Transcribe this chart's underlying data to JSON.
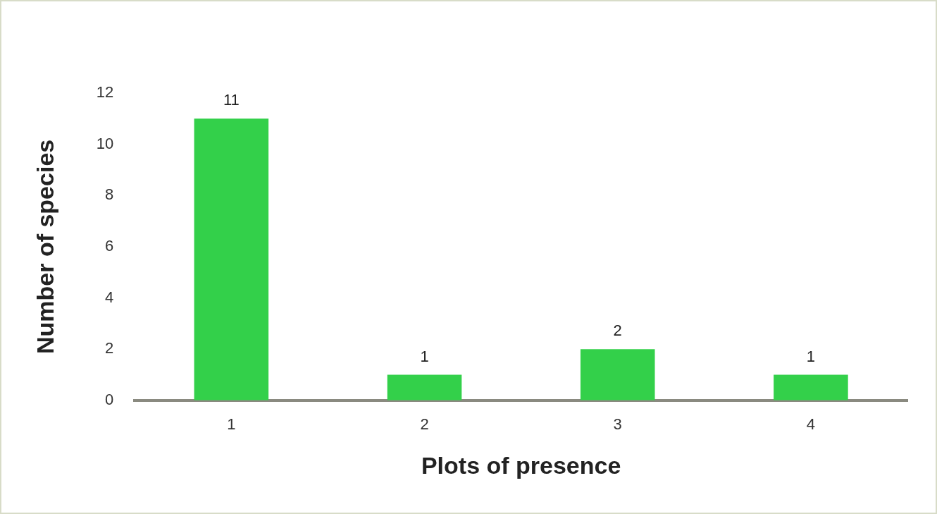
{
  "chart_data": {
    "type": "bar",
    "xlabel": "Plots of presence",
    "ylabel": "Number of species",
    "categories": [
      "1",
      "2",
      "3",
      "4"
    ],
    "values": [
      11,
      1,
      2,
      1
    ],
    "color": "#33d04a",
    "ylim": [
      0,
      12
    ],
    "yticks": [
      0,
      2,
      4,
      6,
      8,
      10,
      12
    ],
    "grid": false,
    "legend": false,
    "data_labels": true
  }
}
